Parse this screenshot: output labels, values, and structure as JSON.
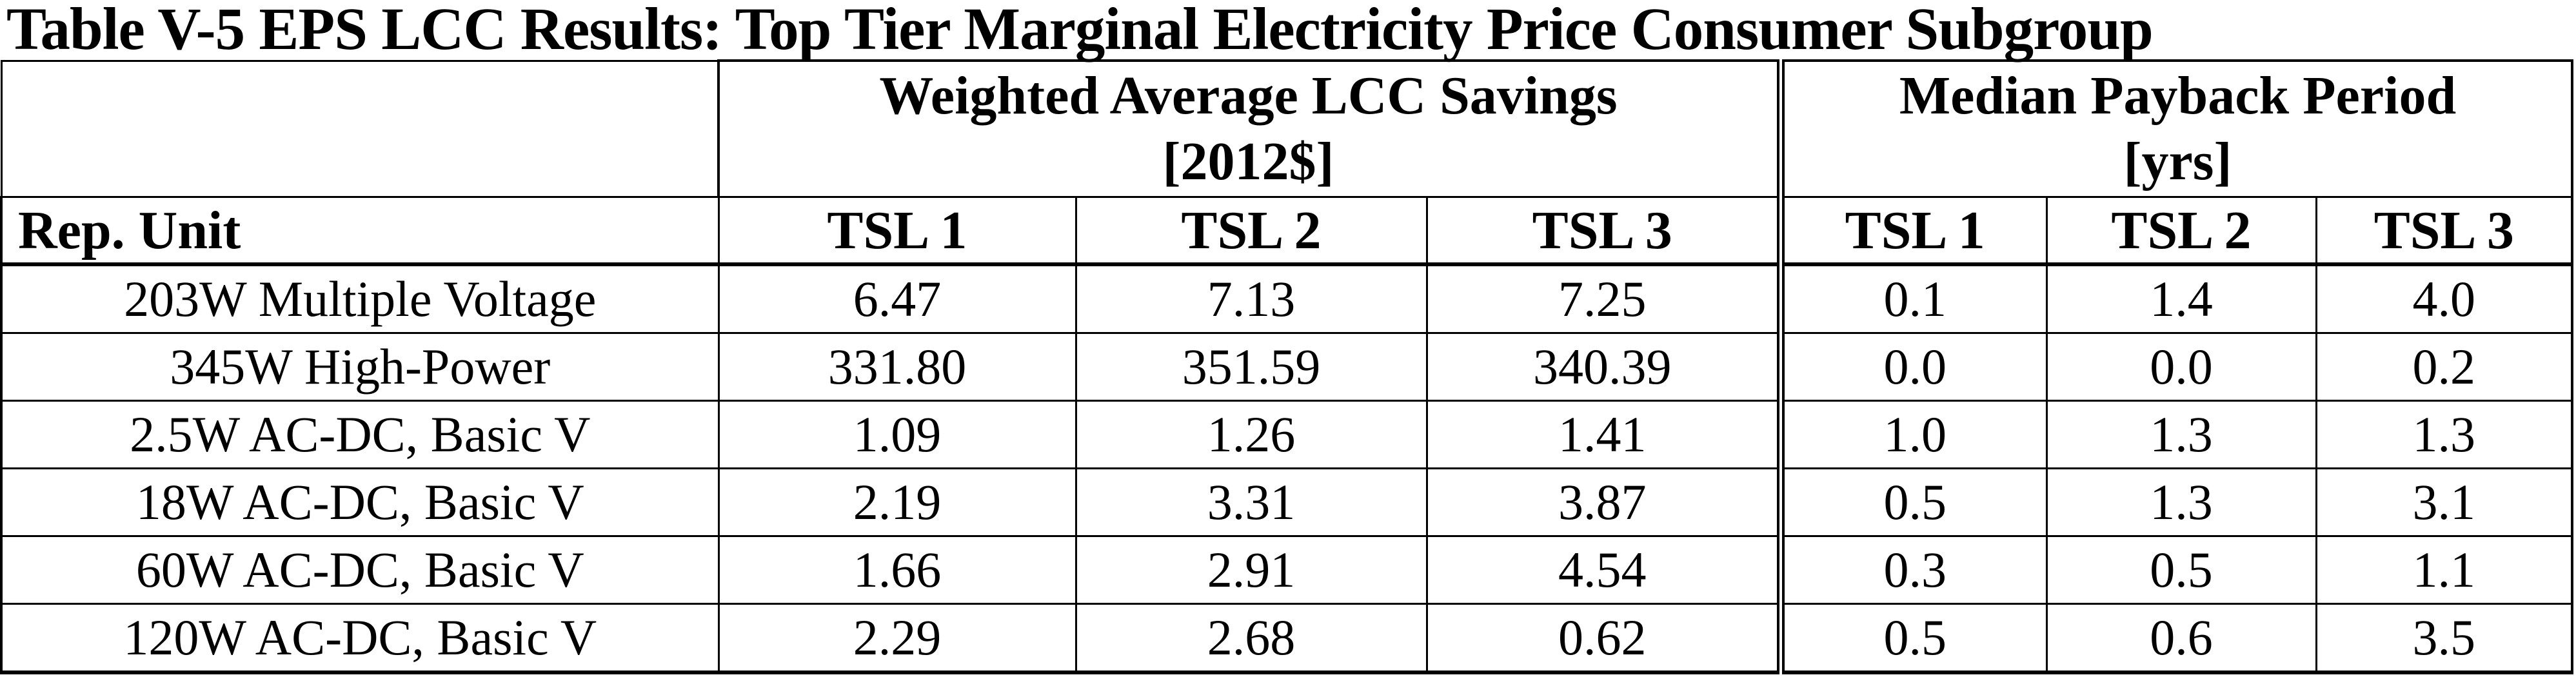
{
  "title": "Table V-5 EPS LCC Results: Top Tier Marginal Electricity Price Consumer Subgroup",
  "table": {
    "group_headers": [
      {
        "line1": "Weighted Average LCC Savings",
        "line2": "[2012$]"
      },
      {
        "line1": "Median Payback Period",
        "line2": "[yrs]"
      }
    ],
    "columns": [
      "Rep. Unit",
      "TSL 1",
      "TSL 2",
      "TSL 3",
      "TSL 1",
      "TSL 2",
      "TSL 3"
    ],
    "rows": [
      {
        "unit": "203W Multiple Voltage",
        "values": [
          "6.47",
          "7.13",
          "7.25",
          "0.1",
          "1.4",
          "4.0"
        ]
      },
      {
        "unit": "345W High-Power",
        "values": [
          "331.80",
          "351.59",
          "340.39",
          "0.0",
          "0.0",
          "0.2"
        ]
      },
      {
        "unit": "2.5W AC-DC, Basic V",
        "values": [
          "1.09",
          "1.26",
          "1.41",
          "1.0",
          "1.3",
          "1.3"
        ]
      },
      {
        "unit": "18W AC-DC, Basic V",
        "values": [
          "2.19",
          "3.31",
          "3.87",
          "0.5",
          "1.3",
          "3.1"
        ]
      },
      {
        "unit": "60W AC-DC, Basic V",
        "values": [
          "1.66",
          "2.91",
          "4.54",
          "0.3",
          "0.5",
          "1.1"
        ]
      },
      {
        "unit": "120W AC-DC, Basic V",
        "values": [
          "2.29",
          "2.68",
          "0.62",
          "0.5",
          "0.6",
          "3.5"
        ]
      }
    ]
  },
  "colors": {
    "text": "#000000",
    "background": "#ffffff",
    "border": "#000000"
  }
}
